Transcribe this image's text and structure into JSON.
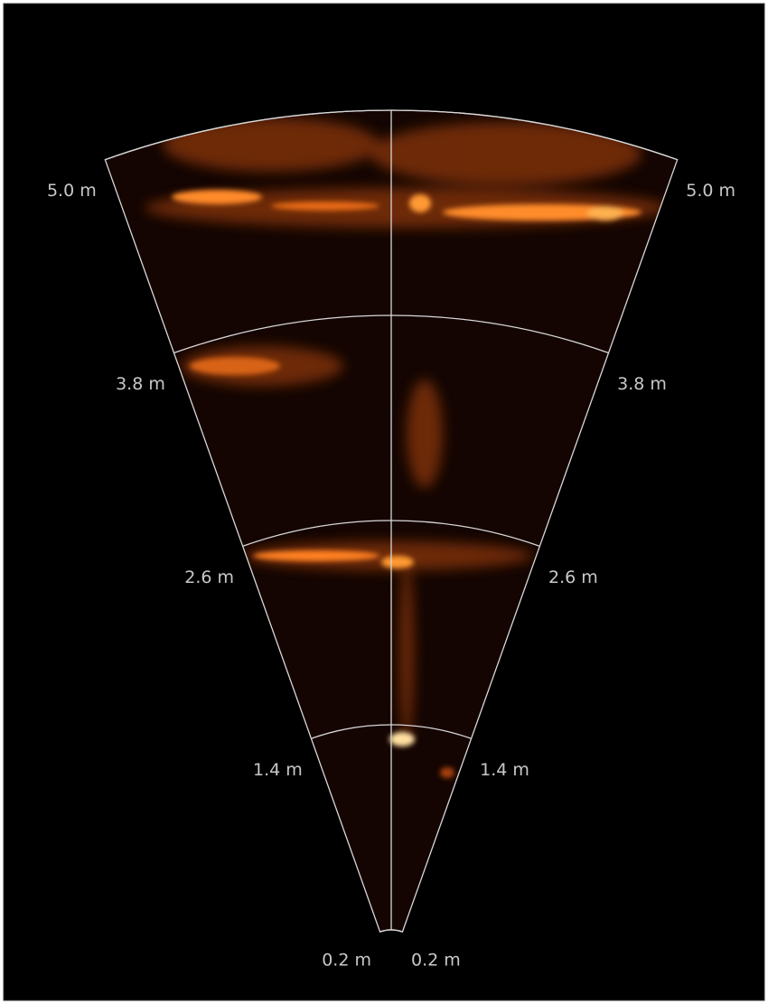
{
  "range_labels": {
    "left": [
      "5.0 m",
      "3.8 m",
      "2.6 m",
      "1.4 m",
      "0.2 m"
    ],
    "right": [
      "5.0 m",
      "3.8 m",
      "2.6 m",
      "1.4 m",
      "0.2 m"
    ]
  }
}
